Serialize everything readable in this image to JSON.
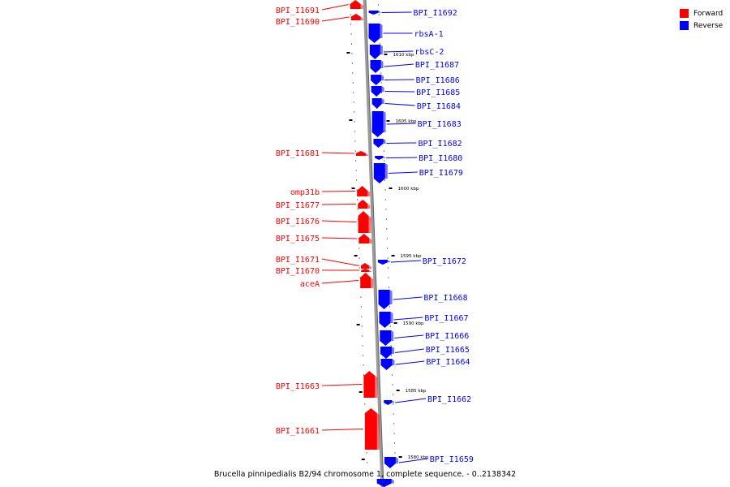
{
  "caption": "Brucella pinnipedialis B2/94 chromosome 1, complete sequence. - 0..2138342",
  "legend": [
    {
      "label": "Forward",
      "color": "#ff0000"
    },
    {
      "label": "Reverse",
      "color": "#0000ff"
    }
  ],
  "colors": {
    "forward": "#ff0000",
    "reverse": "#0000ff",
    "backbone": "#9a9a9a"
  },
  "scale_labels": [
    "1610 kbp",
    "1605 kbp",
    "1600 kbp",
    "1595 kbp",
    "1590 kbp",
    "1585 kbp",
    "1580 kbp"
  ],
  "genes_forward": [
    "BPI_I1691",
    "BPI_I1690",
    "BPI_I1681",
    "omp31b",
    "BPI_I1677",
    "BPI_I1676",
    "BPI_I1675",
    "BPI_I1671",
    "BPI_I1670",
    "aceA",
    "BPI_I1663",
    "BPI_I1661"
  ],
  "genes_reverse": [
    "BPI_I1692",
    "rbsA-1",
    "rbsC-2",
    "BPI_I1687",
    "BPI_I1686",
    "BPI_I1685",
    "BPI_I1684",
    "BPI_I1683",
    "BPI_I1682",
    "BPI_I1680",
    "BPI_I1679",
    "BPI_I1672",
    "BPI_I1668",
    "BPI_I1667",
    "BPI_I1666",
    "BPI_I1665",
    "BPI_I1664",
    "BPI_I1662",
    "BPI_I1659"
  ]
}
